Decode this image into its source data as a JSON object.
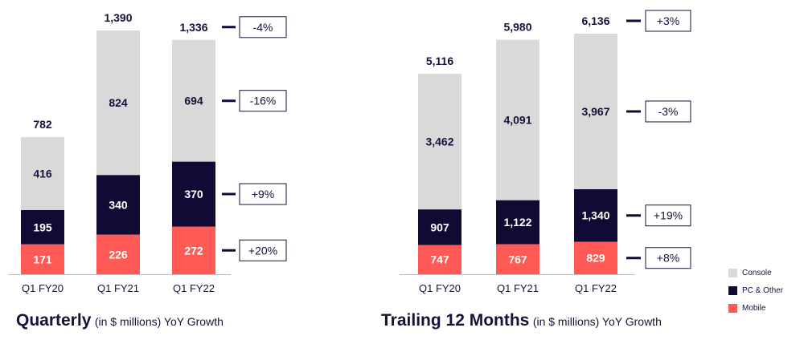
{
  "colors": {
    "console": "#d9d9d9",
    "pc_other": "#0f0b35",
    "mobile": "#ff5a55"
  },
  "chart_data": [
    {
      "type": "bar",
      "stacked": true,
      "categories": [
        "Q1 FY20",
        "Q1 FY21",
        "Q1 FY22"
      ],
      "series": [
        {
          "name": "Mobile",
          "values": [
            171,
            226,
            272
          ]
        },
        {
          "name": "PC & Other",
          "values": [
            195,
            340,
            370
          ]
        },
        {
          "name": "Console",
          "values": [
            416,
            824,
            694
          ]
        }
      ],
      "totals": [
        782,
        1390,
        1336
      ],
      "yoy_growth": {
        "total": "-4%",
        "Console": "-16%",
        "PC & Other": "+9%",
        "Mobile": "+20%"
      },
      "title": "Quarterly",
      "subtitle": "(in $ millions) YoY Growth",
      "ylim": [
        0,
        1390
      ],
      "grid": false
    },
    {
      "type": "bar",
      "stacked": true,
      "categories": [
        "Q1 FY20",
        "Q1 FY21",
        "Q1 FY22"
      ],
      "series": [
        {
          "name": "Mobile",
          "values": [
            747,
            767,
            829
          ]
        },
        {
          "name": "PC & Other",
          "values": [
            907,
            1122,
            1340
          ]
        },
        {
          "name": "Console",
          "values": [
            3462,
            4091,
            3967
          ]
        }
      ],
      "totals": [
        5116,
        5980,
        6136
      ],
      "yoy_growth": {
        "total": "+3%",
        "Console": "-3%",
        "PC & Other": "+19%",
        "Mobile": "+8%"
      },
      "title": "Trailing 12 Months",
      "subtitle": "(in $ millions) YoY Growth",
      "ylim": [
        0,
        6136
      ],
      "grid": false
    }
  ],
  "legend": {
    "placement": "bottom-right",
    "items": [
      {
        "label": "Console",
        "color": "#d9d9d9"
      },
      {
        "label": "PC & Other",
        "color": "#0f0b35"
      },
      {
        "label": "Mobile",
        "color": "#ff5a55"
      }
    ]
  }
}
